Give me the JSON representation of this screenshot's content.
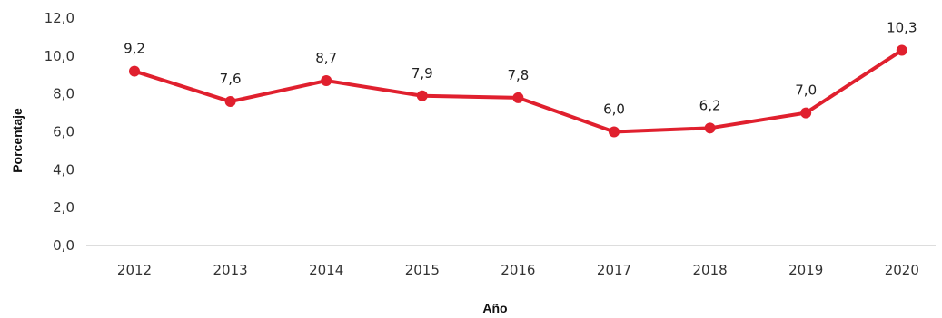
{
  "chart_data": {
    "type": "line",
    "title": "",
    "xlabel": "Año",
    "ylabel": "Porcentaje",
    "categories": [
      "2012",
      "2013",
      "2014",
      "2015",
      "2016",
      "2017",
      "2018",
      "2019",
      "2020"
    ],
    "series": [
      {
        "values": [
          9.2,
          7.6,
          8.7,
          7.9,
          7.8,
          6.0,
          6.2,
          7.0,
          10.3
        ],
        "data_labels": [
          "9,2",
          "7,6",
          "8,7",
          "7,9",
          "7,8",
          "6,0",
          "6,2",
          "7,0",
          "10,3"
        ],
        "color": "#e0202e"
      }
    ],
    "ylim": [
      0,
      12
    ],
    "yticks": [
      0,
      2,
      4,
      6,
      8,
      10,
      12
    ],
    "ytick_labels": [
      "0,0",
      "2,0",
      "4,0",
      "6,0",
      "8,0",
      "10,0",
      "12,0"
    ],
    "grid": false,
    "legend": "none",
    "axis_color": "#bbbbbb"
  }
}
